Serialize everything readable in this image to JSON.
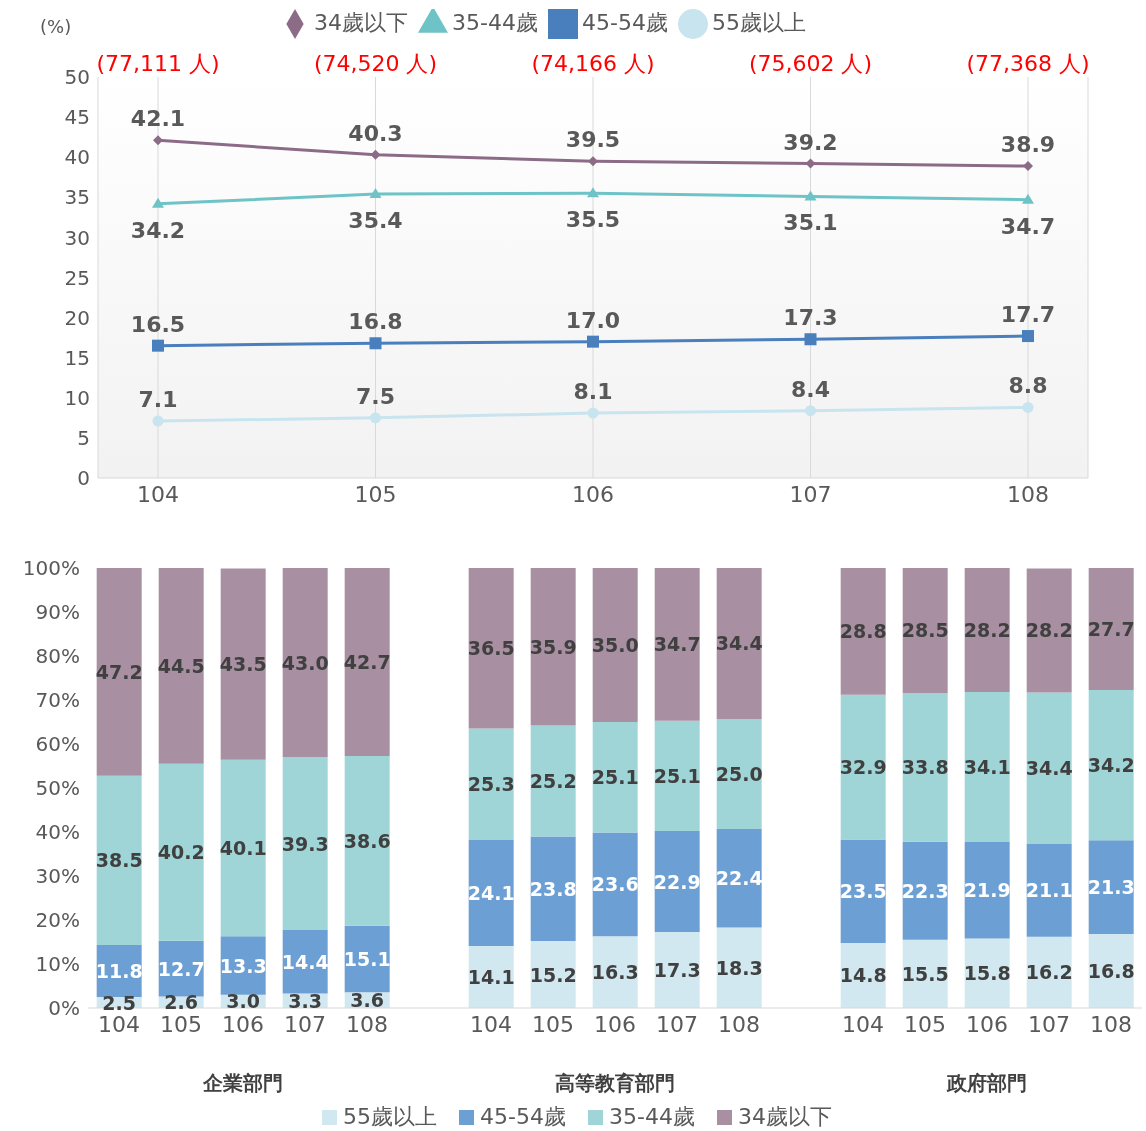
{
  "chart_data": [
    {
      "type": "line",
      "ylabel": "(%)",
      "categories": [
        "104",
        "105",
        "106",
        "107",
        "108"
      ],
      "ylim": [
        0,
        50
      ],
      "yticks": [
        0,
        5,
        10,
        15,
        20,
        25,
        30,
        35,
        40,
        45,
        50
      ],
      "grid": "x",
      "legend": "top",
      "annotations": [
        "(77,111 人)",
        "(74,520 人)",
        "(74,166 人)",
        "(75,602 人)",
        "(77,368 人)"
      ],
      "series": [
        {
          "name": "34歲以下",
          "color": "#8c6b86",
          "marker": "diamond",
          "values": [
            42.1,
            40.3,
            39.5,
            39.2,
            38.9
          ],
          "value_labels": [
            "42.1",
            "40.3",
            "39.5",
            "39.2",
            "38.9"
          ]
        },
        {
          "name": "35-44歲",
          "color": "#6ec3c7",
          "marker": "triangle",
          "values": [
            34.2,
            35.4,
            35.5,
            35.1,
            34.7
          ],
          "value_labels": [
            "34.2",
            "35.4",
            "35.5",
            "35.1",
            "34.7"
          ]
        },
        {
          "name": "45-54歲",
          "color": "#4a7fbe",
          "marker": "square",
          "values": [
            16.5,
            16.8,
            17.0,
            17.3,
            17.7
          ],
          "value_labels": [
            "16.5",
            "16.8",
            "17.0",
            "17.3",
            "17.7"
          ]
        },
        {
          "name": "55歲以上",
          "color": "#c7e4ef",
          "marker": "circle",
          "values": [
            7.1,
            7.5,
            8.1,
            8.4,
            8.8
          ],
          "value_labels": [
            "7.1",
            "7.5",
            "8.1",
            "8.4",
            "8.8"
          ]
        }
      ]
    },
    {
      "type": "bar",
      "stacked": true,
      "legend": "bottom",
      "annotations": [
        "企業部門",
        "高等教育部門",
        "政府部門"
      ],
      "categories": [
        "104",
        "105",
        "106",
        "107",
        "108",
        null,
        "104",
        "105",
        "106",
        "107",
        "108",
        null,
        "104",
        "105",
        "106",
        "107",
        "108"
      ],
      "ylim": [
        0,
        100
      ],
      "yticks": [
        {
          "value": 0,
          "label": "0%"
        },
        {
          "value": 10,
          "label": "10%"
        },
        {
          "value": 20,
          "label": "20%"
        },
        {
          "value": 30,
          "label": "30%"
        },
        {
          "value": 40,
          "label": "40%"
        },
        {
          "value": 50,
          "label": "50%"
        },
        {
          "value": 60,
          "label": "60%"
        },
        {
          "value": 70,
          "label": "70%"
        },
        {
          "value": 80,
          "label": "80%"
        },
        {
          "value": 90,
          "label": "90%"
        },
        {
          "value": 100,
          "label": "100%"
        }
      ],
      "series": [
        {
          "name": "55歲以上",
          "color": "#d2e8f0",
          "values": [
            2.5,
            2.6,
            3.0,
            3.3,
            3.6,
            null,
            14.1,
            15.2,
            16.3,
            17.3,
            18.3,
            null,
            14.8,
            15.5,
            15.8,
            16.2,
            16.8
          ],
          "value_labels": [
            "2.5",
            "2.6",
            "3.0",
            "3.3",
            "3.6",
            null,
            "14.1",
            "15.2",
            "16.3",
            "17.3",
            "18.3",
            null,
            "14.8",
            "15.5",
            "15.8",
            "16.2",
            "16.8"
          ]
        },
        {
          "name": "45-54歲",
          "color": "#6c9fd3",
          "values": [
            11.8,
            12.7,
            13.3,
            14.4,
            15.1,
            null,
            24.1,
            23.8,
            23.6,
            22.9,
            22.4,
            null,
            23.5,
            22.3,
            21.9,
            21.1,
            21.3
          ],
          "value_labels": [
            "11.8",
            "12.7",
            "13.3",
            "14.4",
            "15.1",
            null,
            "24.1",
            "23.8",
            "23.6",
            "22.9",
            "22.4",
            null,
            "23.5",
            "22.3",
            "21.9",
            "21.1",
            "21.3"
          ]
        },
        {
          "name": "35-44歲",
          "color": "#a0d5d8",
          "values": [
            38.5,
            40.2,
            40.1,
            39.3,
            38.6,
            null,
            25.3,
            25.2,
            25.1,
            25.1,
            25.0,
            null,
            32.9,
            33.8,
            34.1,
            34.4,
            34.2
          ],
          "value_labels": [
            "38.5",
            "40.2",
            "40.1",
            "39.3",
            "38.6",
            null,
            "25.3",
            "25.2",
            "25.1",
            "25.1",
            "25.0",
            null,
            "32.9",
            "33.8",
            "34.1",
            "34.4",
            "34.2"
          ]
        },
        {
          "name": "34歲以下",
          "color": "#a88fa1",
          "values": [
            47.2,
            44.5,
            43.5,
            43.0,
            42.7,
            null,
            36.5,
            35.9,
            35.0,
            34.7,
            34.4,
            null,
            28.8,
            28.5,
            28.2,
            28.2,
            27.7
          ],
          "value_labels": [
            "47.2",
            "44.5",
            "43.5",
            "43.0",
            "42.7",
            null,
            "36.5",
            "35.9",
            "35.0",
            "34.7",
            "34.4",
            null,
            "28.8",
            "28.5",
            "28.2",
            "28.2",
            "27.7"
          ]
        }
      ]
    }
  ]
}
